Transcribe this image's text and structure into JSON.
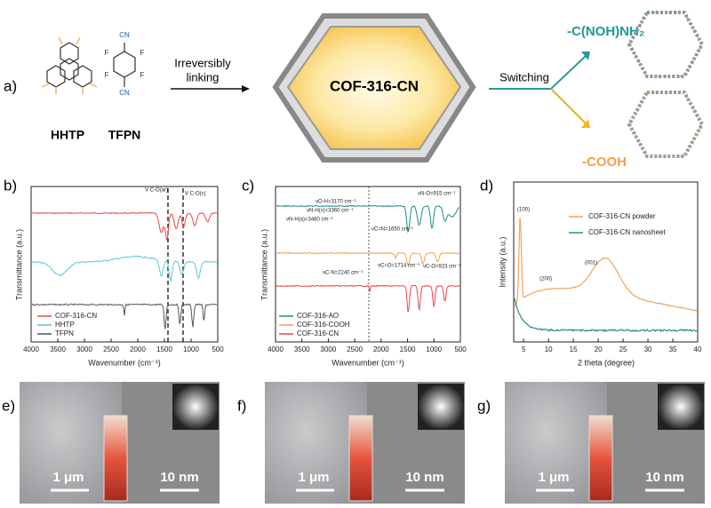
{
  "panel_a": {
    "label": "a)",
    "reagents": [
      "HHTP",
      "TFPN"
    ],
    "step1": [
      "Irreversibly",
      "linking"
    ],
    "product": "COF-316-CN",
    "step2": "Switching",
    "products": [
      "-C(NOH)NH₂",
      "-COOH"
    ],
    "groups": [
      "CN",
      "F"
    ]
  },
  "panel_b": {
    "label": "b)",
    "ylabel": "Transmittance (a.u.)",
    "xlabel": "Wavenumber (cm⁻¹)",
    "xticks": [
      "4000",
      "3500",
      "3000",
      "2500",
      "2000",
      "1500",
      "1000",
      "500"
    ],
    "legend": [
      "COF-316-CN",
      "HHTP",
      "TFPN"
    ],
    "annotations": [
      "V C-O(ar)",
      "V C-O(s)"
    ]
  },
  "panel_c": {
    "label": "c)",
    "ylabel": "Transmittance (a.u.)",
    "xlabel": "Wavenumber (cm⁻¹)",
    "xticks": [
      "4000",
      "3500",
      "3000",
      "2500",
      "2000",
      "1500",
      "1000",
      "500"
    ],
    "legend": [
      "COF-316-AO",
      "COF-316-COOH",
      "COF-316-CN"
    ],
    "annotations": [
      "νO-H=3170 cm⁻¹",
      "νN-H(s)=3360 cm⁻¹",
      "νN-H(a)=3480 cm⁻¹",
      "νC=N=1650 cm⁻¹",
      "νN-O=915 cm⁻¹",
      "νC=O=1714 cm⁻¹",
      "νC-O=923 cm⁻¹",
      "νC-N=2240 cm⁻¹"
    ]
  },
  "panel_d": {
    "label": "d)",
    "ylabel": "Intensity (a.u.)",
    "xlabel": "2 theta (degree)",
    "xticks": [
      "5",
      "10",
      "15",
      "20",
      "25",
      "30",
      "35",
      "40"
    ],
    "legend": [
      "COF-316-CN powder",
      "COF-316-CN nanosheet"
    ],
    "peaks": [
      "(100)",
      "(200)",
      "(001)"
    ]
  },
  "panel_e": {
    "label": "e)",
    "scale_bars": [
      "1 μm",
      "10 nm"
    ]
  },
  "panel_f": {
    "label": "f)",
    "scale_bars": [
      "1 μm",
      "10 nm"
    ]
  },
  "panel_g": {
    "label": "g)",
    "scale_bars": [
      "1 μm",
      "10 nm"
    ]
  }
}
